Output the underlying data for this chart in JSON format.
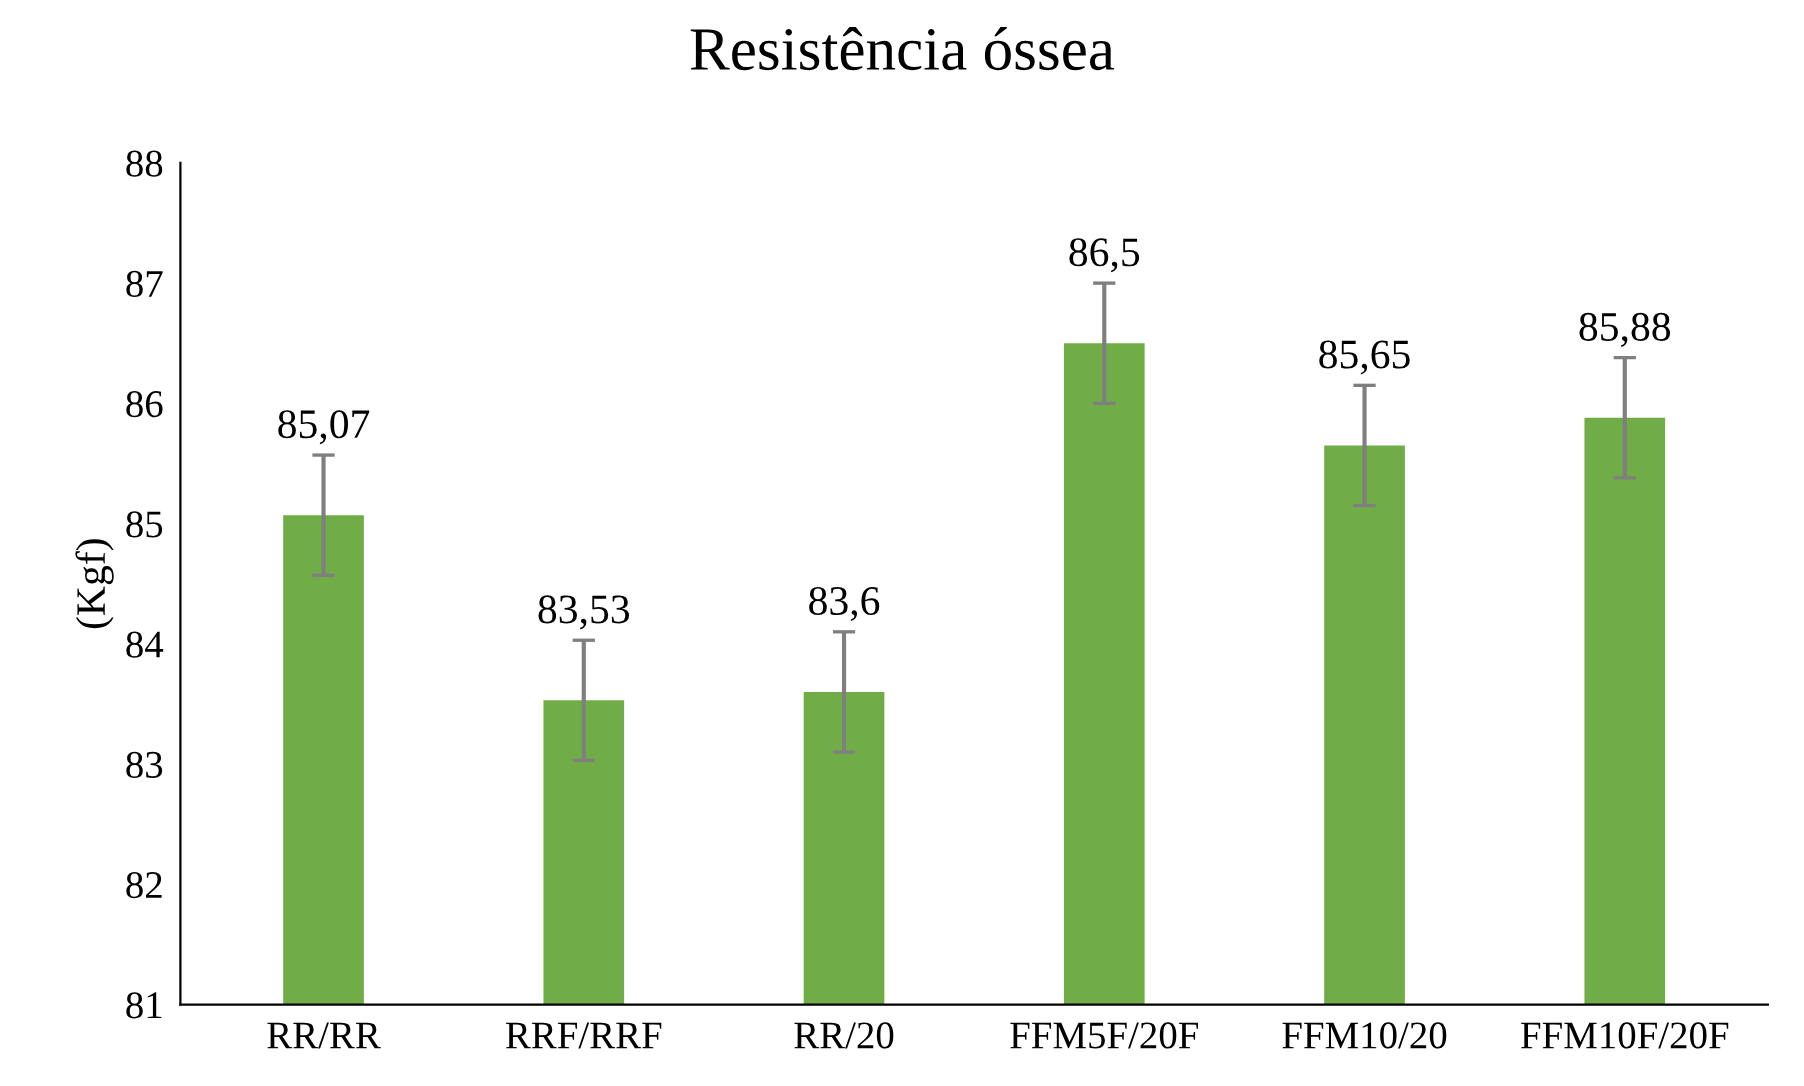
{
  "chart_data": {
    "type": "bar",
    "title": "Resistência óssea",
    "ylabel": "(Kgf)",
    "categories": [
      "RR/RR",
      "RRF/RRF",
      "RR/20",
      "FFM5F/20F",
      "FFM10/20",
      "FFM10F/20F"
    ],
    "values": [
      85.07,
      83.53,
      83.6,
      86.5,
      85.65,
      85.88
    ],
    "value_labels": [
      "85,07",
      "83,53",
      "83,6",
      "86,5",
      "85,65",
      "85,88"
    ],
    "errors": [
      0.5,
      0.5,
      0.5,
      0.5,
      0.5,
      0.5
    ],
    "color": "#70ad47",
    "ylim": [
      81,
      88
    ],
    "yticks": [
      81,
      82,
      83,
      84,
      85,
      86,
      87,
      88
    ],
    "grid": false,
    "legend": false
  }
}
